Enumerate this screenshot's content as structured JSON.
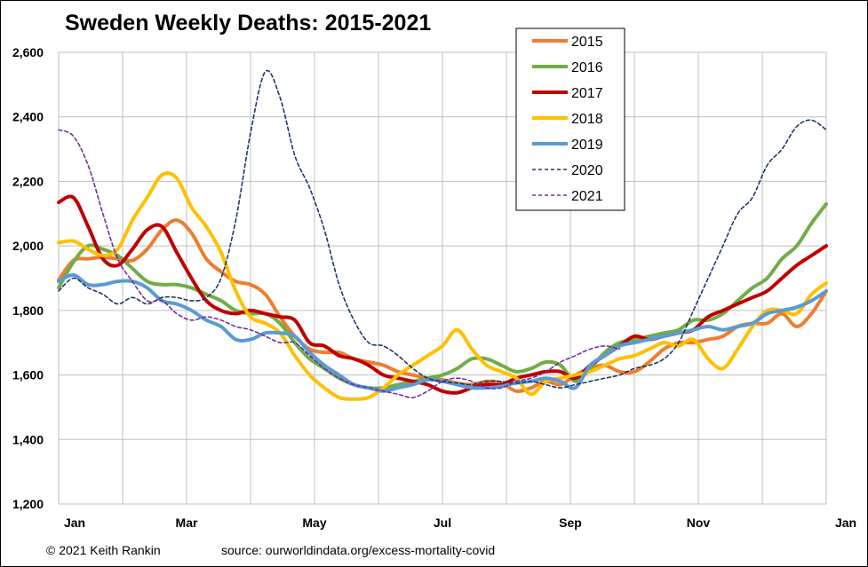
{
  "chart_data": {
    "type": "line",
    "title": "Sweden Weekly Deaths: 2015-2021",
    "xlabel": "",
    "ylabel": "",
    "x_ticks": [
      "Jan",
      "Mar",
      "May",
      "Jul",
      "Sep",
      "Nov",
      "Jan"
    ],
    "x_unit": "week of year",
    "xlim": [
      0,
      52
    ],
    "ylim": [
      1200,
      2600
    ],
    "y_ticks": [
      "1,200",
      "1,400",
      "1,600",
      "1,800",
      "2,000",
      "2,200",
      "2,400",
      "2,600"
    ],
    "grid": true,
    "legend_position": "top-right",
    "series": [
      {
        "name": "2015",
        "color": "#ED7D31",
        "style": "solid",
        "x": [
          0,
          1,
          2,
          3,
          4,
          5,
          6,
          7,
          8,
          9,
          10,
          11,
          12,
          13,
          14,
          15,
          16,
          17,
          18,
          19,
          20,
          21,
          22,
          23,
          24,
          25,
          26,
          27,
          28,
          29,
          30,
          31,
          32,
          33,
          34,
          35,
          36,
          37,
          38,
          39,
          40,
          41,
          42,
          43,
          44,
          45,
          46,
          47,
          48,
          49,
          50,
          51,
          52
        ],
        "values": [
          1895,
          1955,
          1960,
          1965,
          1960,
          1955,
          1990,
          2050,
          2080,
          2040,
          1960,
          1920,
          1890,
          1880,
          1850,
          1780,
          1720,
          1680,
          1670,
          1670,
          1650,
          1640,
          1630,
          1610,
          1600,
          1590,
          1585,
          1575,
          1570,
          1580,
          1575,
          1550,
          1560,
          1580,
          1570,
          1600,
          1620,
          1630,
          1610,
          1610,
          1640,
          1680,
          1700,
          1700,
          1710,
          1720,
          1750,
          1760,
          1760,
          1790,
          1750,
          1790,
          1860
        ]
      },
      {
        "name": "2016",
        "color": "#70AD47",
        "style": "solid",
        "x": [
          0,
          1,
          2,
          3,
          4,
          5,
          6,
          7,
          8,
          9,
          10,
          11,
          12,
          13,
          14,
          15,
          16,
          17,
          18,
          19,
          20,
          21,
          22,
          23,
          24,
          25,
          26,
          27,
          28,
          29,
          30,
          31,
          32,
          33,
          34,
          35,
          36,
          37,
          38,
          39,
          40,
          41,
          42,
          43,
          44,
          45,
          46,
          47,
          48,
          49,
          50,
          51,
          52
        ],
        "values": [
          1870,
          1950,
          2000,
          1990,
          1970,
          1930,
          1890,
          1880,
          1880,
          1870,
          1850,
          1830,
          1800,
          1790,
          1790,
          1760,
          1700,
          1650,
          1620,
          1590,
          1570,
          1560,
          1560,
          1570,
          1580,
          1590,
          1600,
          1620,
          1650,
          1650,
          1630,
          1610,
          1620,
          1640,
          1630,
          1580,
          1620,
          1670,
          1700,
          1710,
          1720,
          1730,
          1740,
          1770,
          1770,
          1790,
          1830,
          1870,
          1900,
          1960,
          2000,
          2070,
          2130
        ]
      },
      {
        "name": "2017",
        "color": "#C00000",
        "style": "solid",
        "x": [
          0,
          1,
          2,
          3,
          4,
          5,
          6,
          7,
          8,
          9,
          10,
          11,
          12,
          13,
          14,
          15,
          16,
          17,
          18,
          19,
          20,
          21,
          22,
          23,
          24,
          25,
          26,
          27,
          28,
          29,
          30,
          31,
          32,
          33,
          34,
          35,
          36,
          37,
          38,
          39,
          40,
          41,
          42,
          43,
          44,
          45,
          46,
          47,
          48,
          49,
          50,
          51,
          52
        ],
        "values": [
          2135,
          2150,
          2060,
          1960,
          1940,
          1990,
          2050,
          2060,
          1980,
          1900,
          1830,
          1800,
          1790,
          1800,
          1790,
          1780,
          1770,
          1700,
          1690,
          1660,
          1650,
          1630,
          1600,
          1590,
          1580,
          1570,
          1550,
          1545,
          1560,
          1570,
          1570,
          1590,
          1600,
          1610,
          1610,
          1590,
          1630,
          1660,
          1690,
          1720,
          1710,
          1720,
          1730,
          1740,
          1780,
          1800,
          1820,
          1840,
          1860,
          1900,
          1940,
          1970,
          2000
        ]
      },
      {
        "name": "2018",
        "color": "#FFC000",
        "style": "solid",
        "x": [
          0,
          1,
          2,
          3,
          4,
          5,
          6,
          7,
          8,
          9,
          10,
          11,
          12,
          13,
          14,
          15,
          16,
          17,
          18,
          19,
          20,
          21,
          22,
          23,
          24,
          25,
          26,
          27,
          28,
          29,
          30,
          31,
          32,
          33,
          34,
          35,
          36,
          37,
          38,
          39,
          40,
          41,
          42,
          43,
          44,
          45,
          46,
          47,
          48,
          49,
          50,
          51,
          52
        ],
        "values": [
          2010,
          2015,
          1990,
          1970,
          1990,
          2080,
          2150,
          2220,
          2210,
          2120,
          2060,
          1980,
          1860,
          1780,
          1760,
          1730,
          1660,
          1600,
          1560,
          1530,
          1525,
          1530,
          1560,
          1600,
          1630,
          1660,
          1690,
          1740,
          1680,
          1630,
          1610,
          1590,
          1540,
          1580,
          1590,
          1600,
          1610,
          1630,
          1650,
          1660,
          1680,
          1700,
          1690,
          1710,
          1650,
          1620,
          1680,
          1750,
          1800,
          1800,
          1790,
          1850,
          1885
        ]
      },
      {
        "name": "2019",
        "color": "#5B9BD5",
        "style": "solid",
        "x": [
          0,
          1,
          2,
          3,
          4,
          5,
          6,
          7,
          8,
          9,
          10,
          11,
          12,
          13,
          14,
          15,
          16,
          17,
          18,
          19,
          20,
          21,
          22,
          23,
          24,
          25,
          26,
          27,
          28,
          29,
          30,
          31,
          32,
          33,
          34,
          35,
          36,
          37,
          38,
          39,
          40,
          41,
          42,
          43,
          44,
          45,
          46,
          47,
          48,
          49,
          50,
          51,
          52
        ],
        "values": [
          1890,
          1910,
          1880,
          1880,
          1890,
          1890,
          1870,
          1830,
          1820,
          1800,
          1770,
          1750,
          1710,
          1710,
          1730,
          1730,
          1720,
          1670,
          1630,
          1600,
          1570,
          1560,
          1550,
          1560,
          1570,
          1585,
          1580,
          1570,
          1560,
          1560,
          1565,
          1575,
          1580,
          1590,
          1580,
          1560,
          1630,
          1660,
          1690,
          1700,
          1710,
          1720,
          1730,
          1740,
          1750,
          1740,
          1750,
          1760,
          1790,
          1800,
          1810,
          1830,
          1860
        ]
      },
      {
        "name": "2020",
        "color": "#1F3864",
        "style": "dashed",
        "x": [
          0,
          1,
          2,
          3,
          4,
          5,
          6,
          7,
          8,
          9,
          10,
          11,
          12,
          13,
          14,
          15,
          16,
          17,
          18,
          19,
          20,
          21,
          22,
          23,
          24,
          25,
          26,
          27,
          28,
          29,
          30,
          31,
          32,
          33,
          34,
          35,
          36,
          37,
          38,
          39,
          40,
          41,
          42,
          43,
          44,
          45,
          46,
          47,
          48,
          49,
          50,
          51,
          52
        ],
        "values": [
          1860,
          1900,
          1870,
          1850,
          1820,
          1840,
          1820,
          1840,
          1840,
          1830,
          1840,
          1900,
          2080,
          2350,
          2540,
          2460,
          2280,
          2180,
          2050,
          1880,
          1770,
          1700,
          1690,
          1660,
          1620,
          1590,
          1580,
          1575,
          1570,
          1580,
          1580,
          1575,
          1580,
          1570,
          1560,
          1570,
          1580,
          1590,
          1600,
          1620,
          1630,
          1650,
          1700,
          1800,
          1900,
          2000,
          2100,
          2150,
          2250,
          2300,
          2370,
          2390,
          2360
        ]
      },
      {
        "name": "2021",
        "color": "#7030A0",
        "style": "dashed",
        "x": [
          0,
          1,
          2,
          3,
          4,
          5,
          6,
          7,
          8,
          9,
          10,
          11,
          12,
          13,
          14,
          15,
          16,
          17,
          18,
          19,
          20,
          21,
          22,
          23,
          24,
          25,
          26,
          27,
          28,
          29,
          30,
          31,
          32,
          33,
          34,
          35,
          36,
          37,
          38
        ],
        "values": [
          2360,
          2340,
          2250,
          2100,
          1960,
          1890,
          1830,
          1830,
          1790,
          1770,
          1780,
          1770,
          1750,
          1740,
          1720,
          1700,
          1700,
          1660,
          1620,
          1590,
          1570,
          1560,
          1550,
          1540,
          1530,
          1550,
          1580,
          1590,
          1580,
          1560,
          1560,
          1580,
          1590,
          1610,
          1640,
          1660,
          1680,
          1690,
          1680
        ]
      }
    ]
  },
  "footer": {
    "credit": "© 2021 Keith Rankin",
    "source": "source:  ourworldindata.org/excess-mortality-covid"
  }
}
